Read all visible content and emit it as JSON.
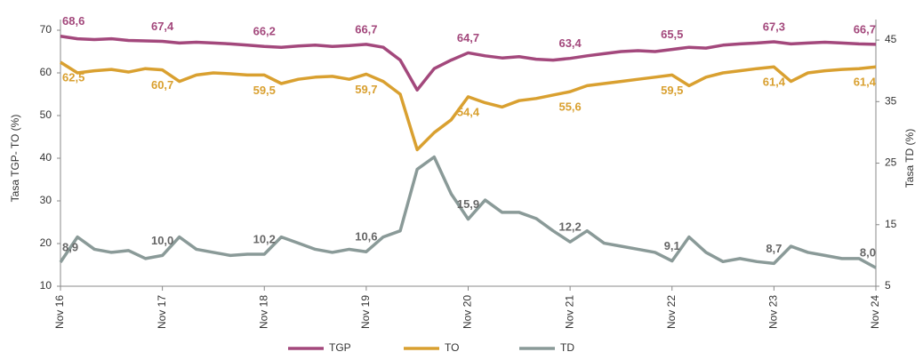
{
  "chart_data": {
    "type": "line",
    "categories": [
      "Nov 16",
      null,
      null,
      null,
      null,
      null,
      "Nov 17",
      null,
      null,
      null,
      null,
      null,
      "Nov 18",
      null,
      null,
      null,
      null,
      null,
      "Nov 19",
      null,
      null,
      null,
      null,
      null,
      "Nov 20",
      null,
      null,
      null,
      null,
      null,
      "Nov 21",
      null,
      null,
      null,
      null,
      null,
      "Nov 22",
      null,
      null,
      null,
      null,
      null,
      "Nov 23",
      null,
      null,
      null,
      null,
      null,
      "Nov 24"
    ],
    "ylabel": "Tasa TGP- TO (%)",
    "y2label": "Tasa TD (%)",
    "ylim": [
      10,
      70
    ],
    "yticks": [
      10,
      20,
      30,
      40,
      50,
      60,
      70
    ],
    "y2lim": [
      5,
      46.6
    ],
    "y2ticks": [
      5,
      15,
      25,
      35,
      45
    ],
    "legend": "bottom",
    "series": [
      {
        "name": "TGP",
        "color": "#a3487c",
        "values": [
          68.6,
          68,
          67.8,
          68,
          67.6,
          67.5,
          67.4,
          67,
          67.2,
          67,
          66.8,
          66.5,
          66.2,
          66,
          66.3,
          66.5,
          66.2,
          66.4,
          66.7,
          66,
          63,
          56,
          61,
          63,
          64.7,
          64,
          63.5,
          63.8,
          63.2,
          63,
          63.4,
          64,
          64.5,
          65,
          65.2,
          65,
          65.5,
          66,
          65.8,
          66.5,
          66.8,
          67,
          67.3,
          66.8,
          67,
          67.2,
          67,
          66.8,
          66.7
        ],
        "value_labels": [
          "68,6",
          null,
          null,
          null,
          null,
          null,
          "67,4",
          null,
          null,
          null,
          null,
          null,
          "66,2",
          null,
          null,
          null,
          null,
          null,
          "66,7",
          null,
          null,
          null,
          null,
          null,
          "64,7",
          null,
          null,
          null,
          null,
          null,
          "63,4",
          null,
          null,
          null,
          null,
          null,
          "65,5",
          null,
          null,
          null,
          null,
          null,
          "67,3",
          null,
          null,
          null,
          null,
          null,
          "66,7"
        ]
      },
      {
        "name": "TO",
        "color": "#d9a030",
        "values": [
          62.5,
          60,
          60.5,
          60.8,
          60.2,
          61,
          60.7,
          58,
          59.5,
          60,
          59.8,
          59.5,
          59.5,
          57.5,
          58.5,
          59,
          59.2,
          58.5,
          59.7,
          58,
          55,
          42,
          46,
          49,
          54.4,
          53,
          52,
          53.5,
          54,
          54.8,
          55.6,
          57,
          57.5,
          58,
          58.5,
          59,
          59.5,
          57,
          59,
          60,
          60.5,
          61,
          61.4,
          58,
          60,
          60.5,
          60.8,
          61,
          61.4
        ],
        "value_labels": [
          "62,5",
          null,
          null,
          null,
          null,
          null,
          "60,7",
          null,
          null,
          null,
          null,
          null,
          "59,5",
          null,
          null,
          null,
          null,
          null,
          "59,7",
          null,
          null,
          null,
          null,
          null,
          "54,4",
          null,
          null,
          null,
          null,
          null,
          "55,6",
          null,
          null,
          null,
          null,
          null,
          "59,5",
          null,
          null,
          null,
          null,
          null,
          "61,4",
          null,
          null,
          null,
          null,
          null,
          "61,4"
        ]
      },
      {
        "name": "TD",
        "color": "#8a9a98",
        "axis": "y2",
        "values": [
          8.9,
          13,
          11,
          10.5,
          10.8,
          9.5,
          10.0,
          13,
          11,
          10.5,
          10,
          10.2,
          10.2,
          13,
          12,
          11,
          10.5,
          11,
          10.6,
          13,
          14,
          24,
          26,
          20,
          15.9,
          19,
          17,
          17,
          16,
          14,
          12.2,
          14,
          12,
          11.5,
          11,
          10.5,
          9.1,
          13,
          10.5,
          9,
          9.5,
          9,
          8.7,
          11.5,
          10.5,
          10,
          9.5,
          9.5,
          8.0
        ],
        "value_labels": [
          "8,9",
          null,
          null,
          null,
          null,
          null,
          "10,0",
          null,
          null,
          null,
          null,
          null,
          "10,2",
          null,
          null,
          null,
          null,
          null,
          "10,6",
          null,
          null,
          null,
          null,
          null,
          "15,9",
          null,
          null,
          null,
          null,
          null,
          "12,2",
          null,
          null,
          null,
          null,
          null,
          "9,1",
          null,
          null,
          null,
          null,
          null,
          "8,7",
          null,
          null,
          null,
          null,
          null,
          "8,0"
        ]
      }
    ]
  }
}
